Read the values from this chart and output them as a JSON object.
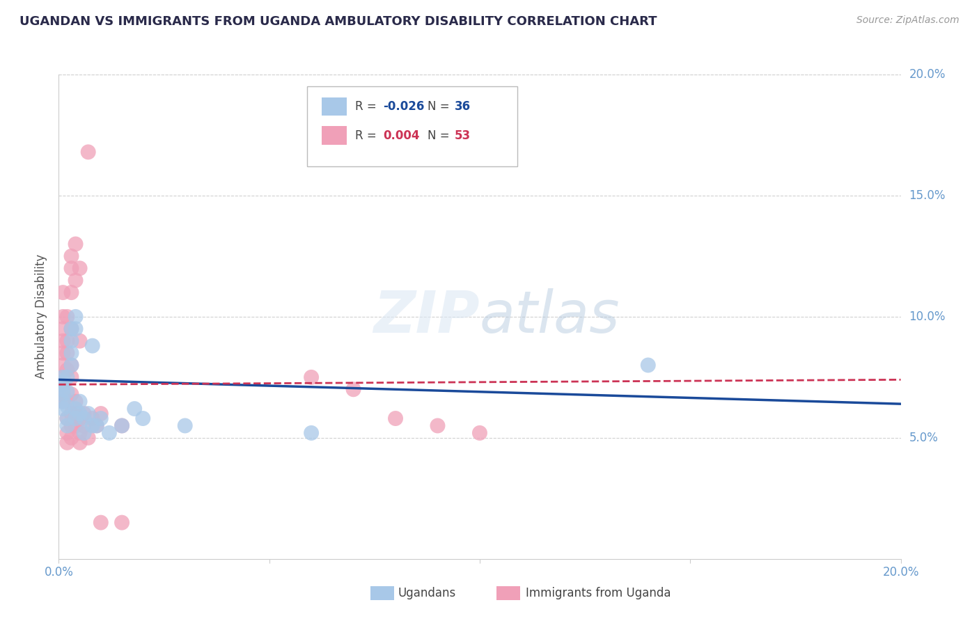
{
  "title": "UGANDAN VS IMMIGRANTS FROM UGANDA AMBULATORY DISABILITY CORRELATION CHART",
  "source": "Source: ZipAtlas.com",
  "ylabel": "Ambulatory Disability",
  "xmin": 0.0,
  "xmax": 0.2,
  "ymin": 0.0,
  "ymax": 0.2,
  "yticks": [
    0.05,
    0.1,
    0.15,
    0.2
  ],
  "ytick_labels": [
    "5.0%",
    "10.0%",
    "15.0%",
    "20.0%"
  ],
  "xticks": [
    0.0,
    0.05,
    0.1,
    0.15,
    0.2
  ],
  "xtick_labels": [
    "0.0%",
    "",
    "",
    "",
    "20.0%"
  ],
  "grid_color": "#d0d0d0",
  "background_color": "#ffffff",
  "watermark_zip": "ZIP",
  "watermark_atlas": "atlas",
  "blue_color": "#a8c8e8",
  "pink_color": "#f0a0b8",
  "blue_line_color": "#1a4a9a",
  "pink_line_color": "#cc3355",
  "tick_color": "#6699cc",
  "ugandans_scatter": [
    [
      0.001,
      0.072
    ],
    [
      0.001,
      0.068
    ],
    [
      0.001,
      0.075
    ],
    [
      0.001,
      0.065
    ],
    [
      0.001,
      0.07
    ],
    [
      0.001,
      0.062
    ],
    [
      0.002,
      0.075
    ],
    [
      0.002,
      0.069
    ],
    [
      0.002,
      0.063
    ],
    [
      0.002,
      0.055
    ],
    [
      0.002,
      0.058
    ],
    [
      0.003,
      0.08
    ],
    [
      0.003,
      0.095
    ],
    [
      0.003,
      0.09
    ],
    [
      0.003,
      0.085
    ],
    [
      0.004,
      0.095
    ],
    [
      0.004,
      0.1
    ],
    [
      0.004,
      0.062
    ],
    [
      0.004,
      0.058
    ],
    [
      0.005,
      0.065
    ],
    [
      0.005,
      0.06
    ],
    [
      0.006,
      0.058
    ],
    [
      0.006,
      0.052
    ],
    [
      0.007,
      0.06
    ],
    [
      0.008,
      0.088
    ],
    [
      0.008,
      0.055
    ],
    [
      0.009,
      0.055
    ],
    [
      0.01,
      0.058
    ],
    [
      0.012,
      0.052
    ],
    [
      0.015,
      0.055
    ],
    [
      0.018,
      0.062
    ],
    [
      0.02,
      0.058
    ],
    [
      0.03,
      0.055
    ],
    [
      0.06,
      0.052
    ],
    [
      0.14,
      0.08
    ],
    [
      0.001,
      0.073
    ]
  ],
  "immigrants_scatter": [
    [
      0.001,
      0.072
    ],
    [
      0.001,
      0.08
    ],
    [
      0.001,
      0.065
    ],
    [
      0.001,
      0.09
    ],
    [
      0.001,
      0.085
    ],
    [
      0.001,
      0.095
    ],
    [
      0.001,
      0.1
    ],
    [
      0.001,
      0.11
    ],
    [
      0.001,
      0.075
    ],
    [
      0.001,
      0.068
    ],
    [
      0.002,
      0.1
    ],
    [
      0.002,
      0.09
    ],
    [
      0.002,
      0.058
    ],
    [
      0.002,
      0.052
    ],
    [
      0.002,
      0.048
    ],
    [
      0.002,
      0.085
    ],
    [
      0.002,
      0.078
    ],
    [
      0.003,
      0.095
    ],
    [
      0.003,
      0.08
    ],
    [
      0.003,
      0.11
    ],
    [
      0.003,
      0.125
    ],
    [
      0.003,
      0.12
    ],
    [
      0.003,
      0.075
    ],
    [
      0.003,
      0.068
    ],
    [
      0.003,
      0.06
    ],
    [
      0.003,
      0.055
    ],
    [
      0.003,
      0.05
    ],
    [
      0.004,
      0.055
    ],
    [
      0.004,
      0.06
    ],
    [
      0.004,
      0.065
    ],
    [
      0.004,
      0.058
    ],
    [
      0.004,
      0.115
    ],
    [
      0.004,
      0.13
    ],
    [
      0.005,
      0.12
    ],
    [
      0.005,
      0.09
    ],
    [
      0.005,
      0.058
    ],
    [
      0.005,
      0.052
    ],
    [
      0.005,
      0.048
    ],
    [
      0.006,
      0.06
    ],
    [
      0.006,
      0.055
    ],
    [
      0.007,
      0.168
    ],
    [
      0.007,
      0.05
    ],
    [
      0.008,
      0.058
    ],
    [
      0.009,
      0.055
    ],
    [
      0.01,
      0.06
    ],
    [
      0.015,
      0.055
    ],
    [
      0.06,
      0.075
    ],
    [
      0.07,
      0.07
    ],
    [
      0.08,
      0.058
    ],
    [
      0.09,
      0.055
    ],
    [
      0.1,
      0.052
    ],
    [
      0.015,
      0.015
    ],
    [
      0.01,
      0.015
    ]
  ],
  "blue_trend_x": [
    0.0,
    0.2
  ],
  "blue_trend_y": [
    0.074,
    0.064
  ],
  "pink_trend_x": [
    0.0,
    0.2
  ],
  "pink_trend_y": [
    0.072,
    0.074
  ]
}
